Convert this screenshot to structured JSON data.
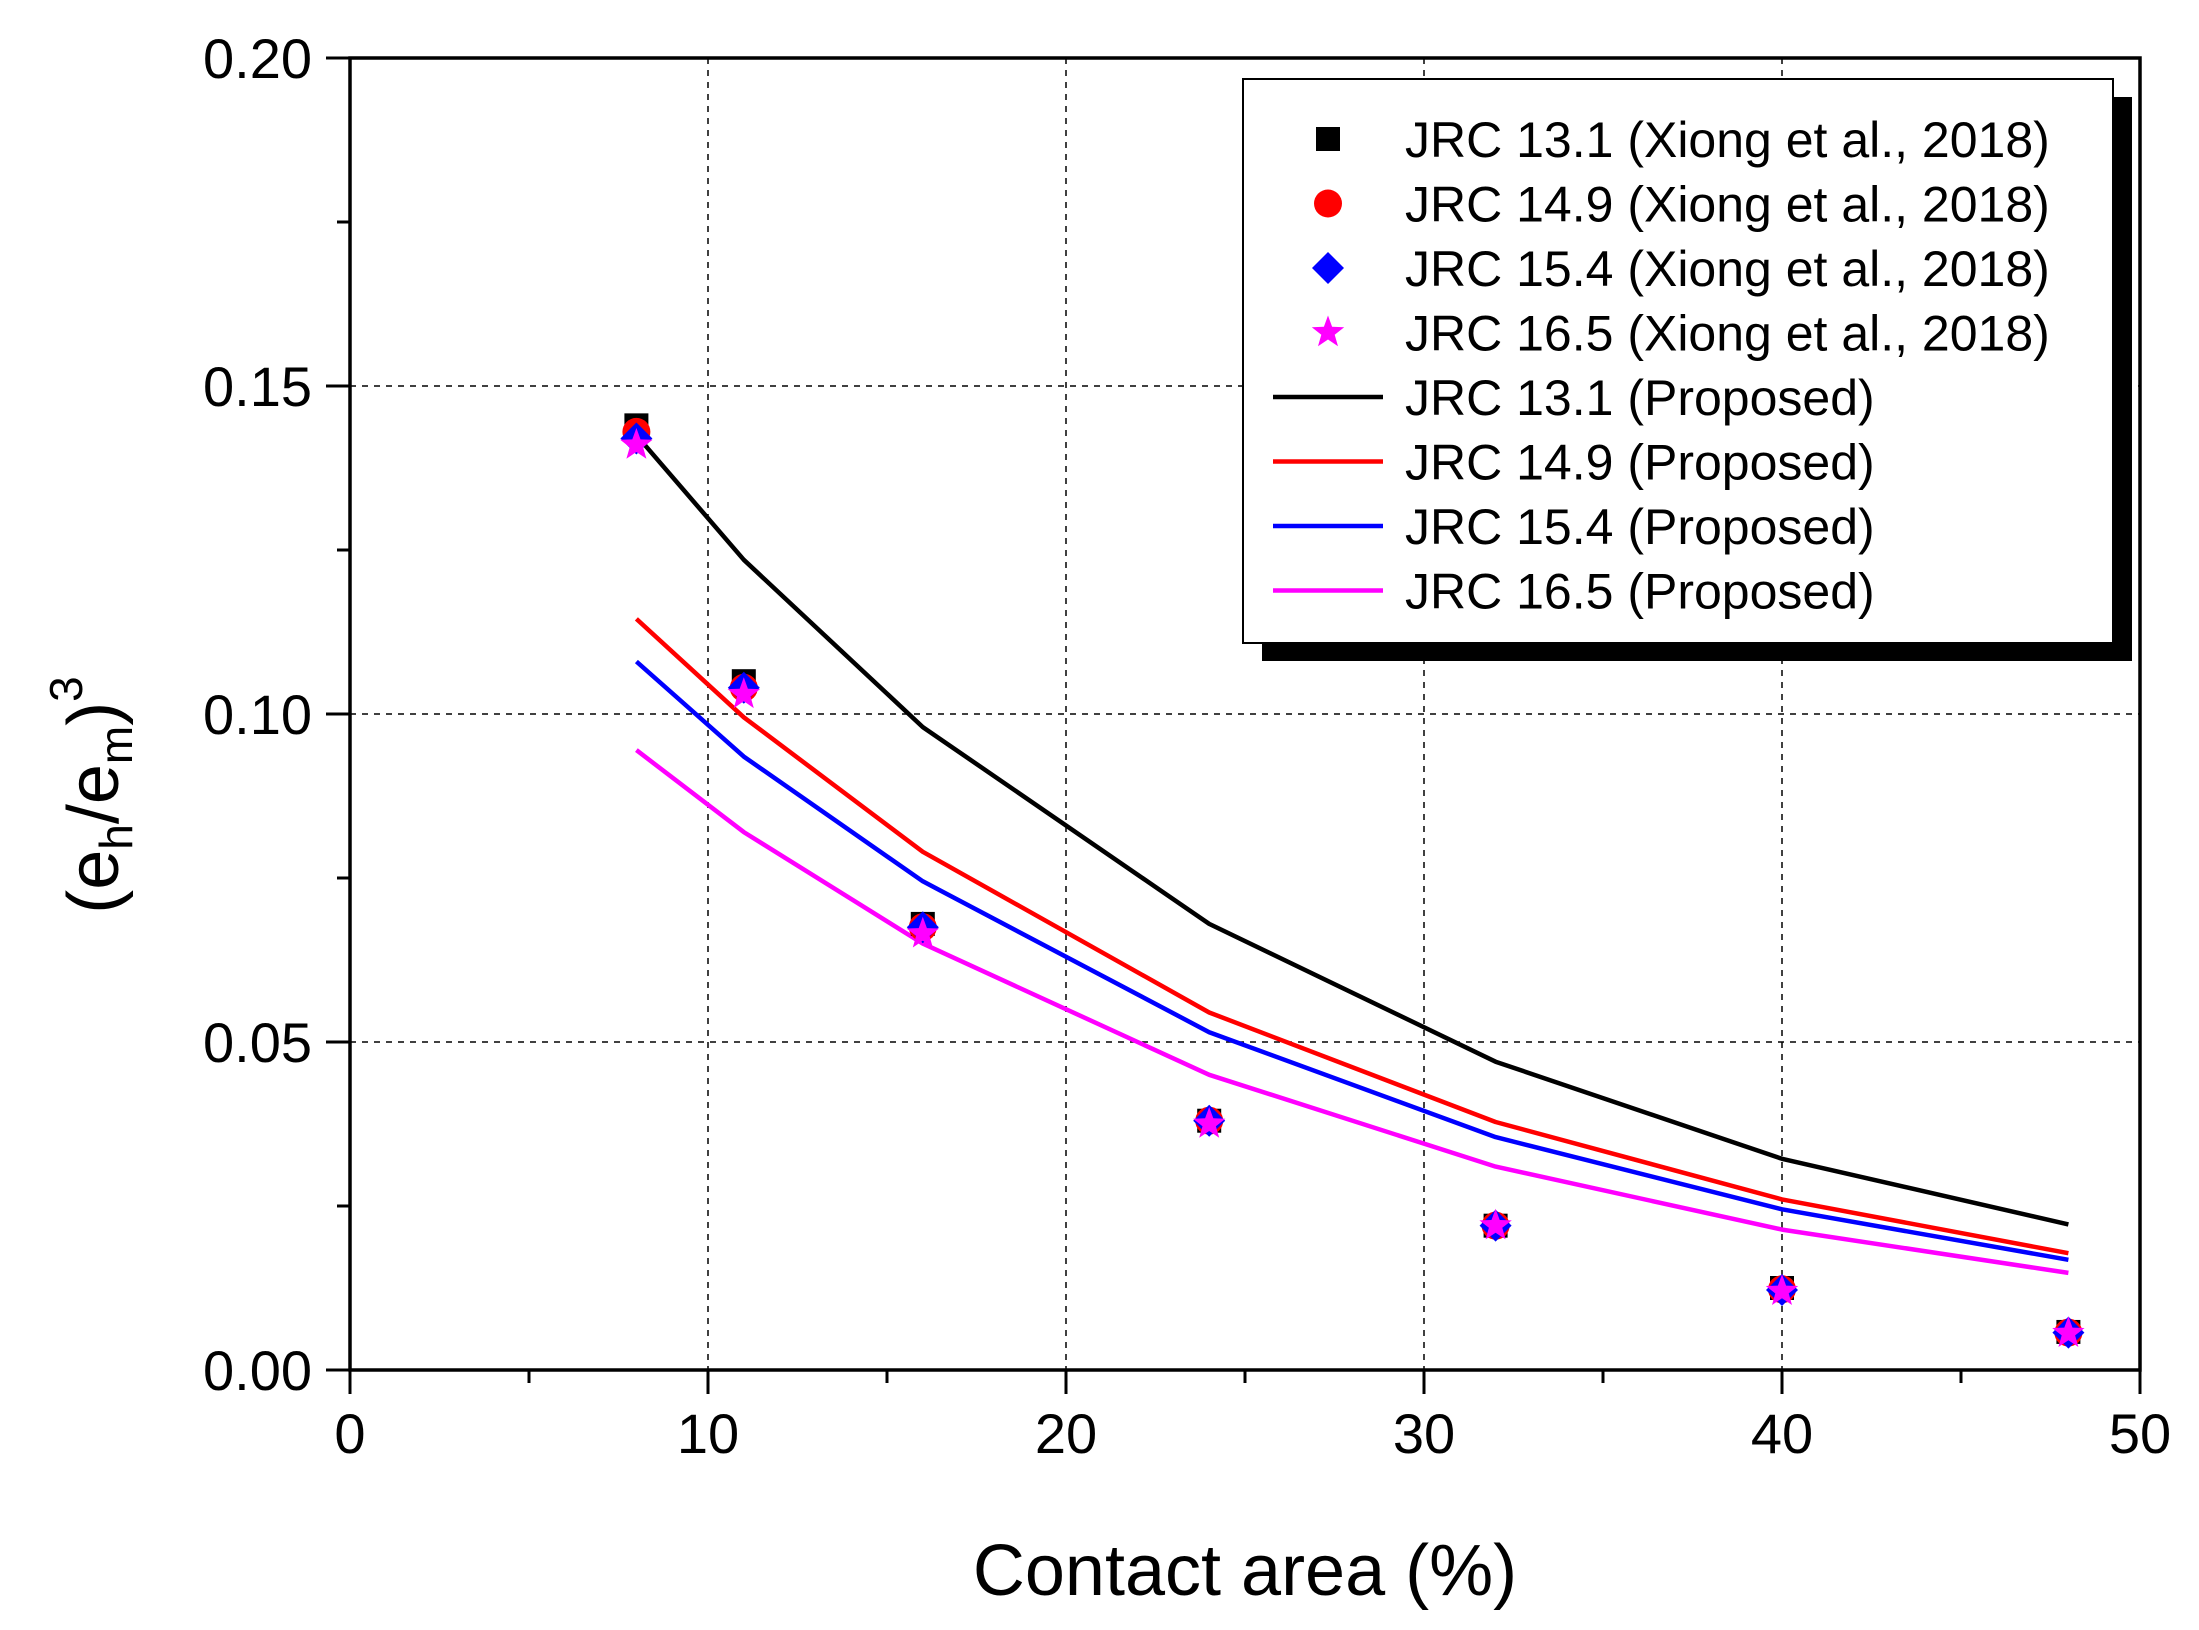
{
  "chart_data": {
    "type": "line",
    "title": "",
    "xlabel": "Contact area (%)",
    "ylabel": {
      "open": "(e",
      "sub1": "h",
      "mid": "/e",
      "sub2": "m",
      "close": ")",
      "sup": "3"
    },
    "xlim": [
      0,
      50
    ],
    "ylim": [
      0.0,
      0.2
    ],
    "x_ticks": [
      0,
      10,
      20,
      30,
      40,
      50
    ],
    "x_tick_labels": [
      "0",
      "10",
      "20",
      "30",
      "40",
      "50"
    ],
    "y_ticks": [
      0.0,
      0.05,
      0.1,
      0.15,
      0.2
    ],
    "y_tick_labels": [
      "0.00",
      "0.05",
      "0.10",
      "0.15",
      "0.20"
    ],
    "grid": true,
    "legend_position": "top-right",
    "series": [
      {
        "name": "JRC 13.1 (Xiong et al., 2018)",
        "kind": "scatter",
        "marker": "square",
        "color": "#000000",
        "x": [
          8,
          11,
          16,
          24,
          32,
          40,
          48
        ],
        "y": [
          0.144,
          0.105,
          0.068,
          0.038,
          0.022,
          0.0125,
          0.0058
        ]
      },
      {
        "name": "JRC 14.9 (Xiong et al., 2018)",
        "kind": "scatter",
        "marker": "circle",
        "color": "#ff0000",
        "x": [
          8,
          11,
          16,
          24,
          32,
          40,
          48
        ],
        "y": [
          0.143,
          0.104,
          0.0675,
          0.038,
          0.022,
          0.0123,
          0.0057
        ]
      },
      {
        "name": "JRC 15.4 (Xiong et al., 2018)",
        "kind": "scatter",
        "marker": "diamond",
        "color": "#0000ff",
        "x": [
          8,
          11,
          16,
          24,
          32,
          40,
          48
        ],
        "y": [
          0.142,
          0.104,
          0.0675,
          0.038,
          0.022,
          0.0122,
          0.0057
        ]
      },
      {
        "name": "JRC 16.5 (Xiong et al., 2018)",
        "kind": "scatter",
        "marker": "star",
        "color": "#ff00ff",
        "x": [
          8,
          11,
          16,
          24,
          32,
          40,
          48
        ],
        "y": [
          0.141,
          0.103,
          0.0665,
          0.0375,
          0.022,
          0.012,
          0.0056
        ]
      },
      {
        "name": "JRC 13.1 (Proposed)",
        "kind": "line",
        "color": "#000000",
        "x": [
          8,
          11,
          16,
          24,
          32,
          40,
          48
        ],
        "y": [
          0.1425,
          0.1235,
          0.098,
          0.068,
          0.047,
          0.0322,
          0.0222
        ]
      },
      {
        "name": "JRC 14.9 (Proposed)",
        "kind": "line",
        "color": "#ff0000",
        "x": [
          8,
          11,
          16,
          24,
          32,
          40,
          48
        ],
        "y": [
          0.1145,
          0.0995,
          0.079,
          0.0545,
          0.0378,
          0.026,
          0.0178
        ]
      },
      {
        "name": "JRC 15.4 (Proposed)",
        "kind": "line",
        "color": "#0000ff",
        "x": [
          8,
          11,
          16,
          24,
          32,
          40,
          48
        ],
        "y": [
          0.108,
          0.0935,
          0.0745,
          0.0515,
          0.0355,
          0.0245,
          0.0168
        ]
      },
      {
        "name": "JRC 16.5 (Proposed)",
        "kind": "line",
        "color": "#ff00ff",
        "x": [
          8,
          11,
          16,
          24,
          32,
          40,
          48
        ],
        "y": [
          0.0945,
          0.082,
          0.065,
          0.045,
          0.031,
          0.0214,
          0.0148
        ]
      }
    ]
  }
}
